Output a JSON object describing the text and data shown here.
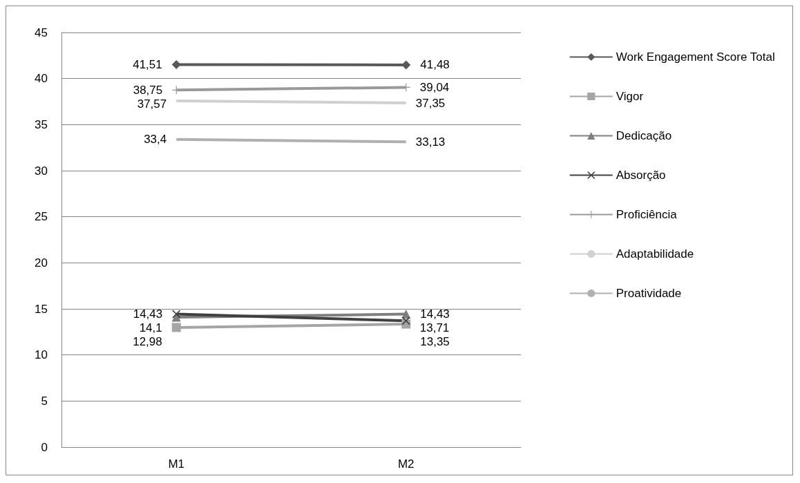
{
  "chart_data": {
    "type": "line",
    "categories": [
      "M1",
      "M2"
    ],
    "series": [
      {
        "name": "Work Engagement Score Total",
        "color": "#595959",
        "marker": "diamond",
        "values": [
          41.51,
          41.48
        ],
        "value_labels": [
          "41,51",
          "41,48"
        ]
      },
      {
        "name": "Vigor",
        "color": "#a5a5a5",
        "marker": "square",
        "values": [
          12.98,
          13.35
        ],
        "value_labels": [
          "12,98",
          "13,35"
        ]
      },
      {
        "name": "Dedicação",
        "color": "#7f7f7f",
        "marker": "triangle",
        "values": [
          14.1,
          14.43
        ],
        "value_labels": [
          "14,1",
          "14,43"
        ]
      },
      {
        "name": "Absorção",
        "color": "#404040",
        "marker": "cross",
        "values": [
          14.43,
          13.71
        ],
        "value_labels": [
          "14,43",
          "13,71"
        ]
      },
      {
        "name": "Proficiência",
        "color": "#999999",
        "marker": "plus",
        "values": [
          38.75,
          39.04
        ],
        "value_labels": [
          "38,75",
          "39,04"
        ]
      },
      {
        "name": "Adaptabilidade",
        "color": "#d0d0d0",
        "marker": "none",
        "values": [
          37.57,
          37.35
        ],
        "value_labels": [
          "37,57",
          "37,35"
        ]
      },
      {
        "name": "Proatividade",
        "color": "#b0b0b0",
        "marker": "none",
        "values": [
          33.4,
          33.13
        ],
        "value_labels": [
          "33,4",
          "33,13"
        ]
      }
    ],
    "ylim": [
      0,
      45
    ],
    "yticks": [
      0,
      5,
      10,
      15,
      20,
      25,
      30,
      35,
      40,
      45
    ],
    "grid": "y",
    "legend": "right"
  }
}
